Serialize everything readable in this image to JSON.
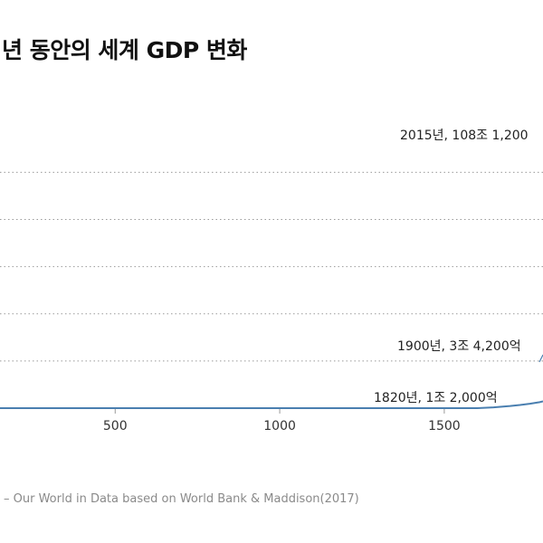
{
  "title": "년 동안의 세계 GDP 변화",
  "source": "– Our World in Data based on World Bank & Maddison(2017)",
  "chart_data": {
    "type": "line",
    "title": "년 동안의 세계 GDP 변화",
    "xlabel": "",
    "ylabel": "",
    "xlim": [
      150,
      1800
    ],
    "ylim": [
      0,
      135
    ],
    "unit": "조",
    "x_ticks": [
      {
        "value": 500,
        "label": "500"
      },
      {
        "value": 1000,
        "label": "1000"
      },
      {
        "value": 1500,
        "label": "1500"
      }
    ],
    "y_gridlines": [
      18,
      36,
      54,
      72,
      90
    ],
    "grid": true,
    "series": [
      {
        "name": "World GDP",
        "color": "#4a7fb0",
        "x": [
          150,
          1000,
          1500,
          1600,
          1650,
          1700,
          1730,
          1760,
          1790,
          1800
        ],
        "y": [
          0.0,
          0.0,
          0.0,
          0.0,
          0.3,
          0.8,
          1.2,
          1.7,
          2.3,
          2.6
        ]
      }
    ],
    "annotations": [
      {
        "text": "2015년, 108조 1,200",
        "x": 2015,
        "y": 108.12
      },
      {
        "text": "1900년, 3조 4,200억",
        "x": 1900,
        "y": 3.42
      },
      {
        "text": "1820년, 1조 2,000억",
        "x": 1820,
        "y": 1.2
      }
    ]
  }
}
